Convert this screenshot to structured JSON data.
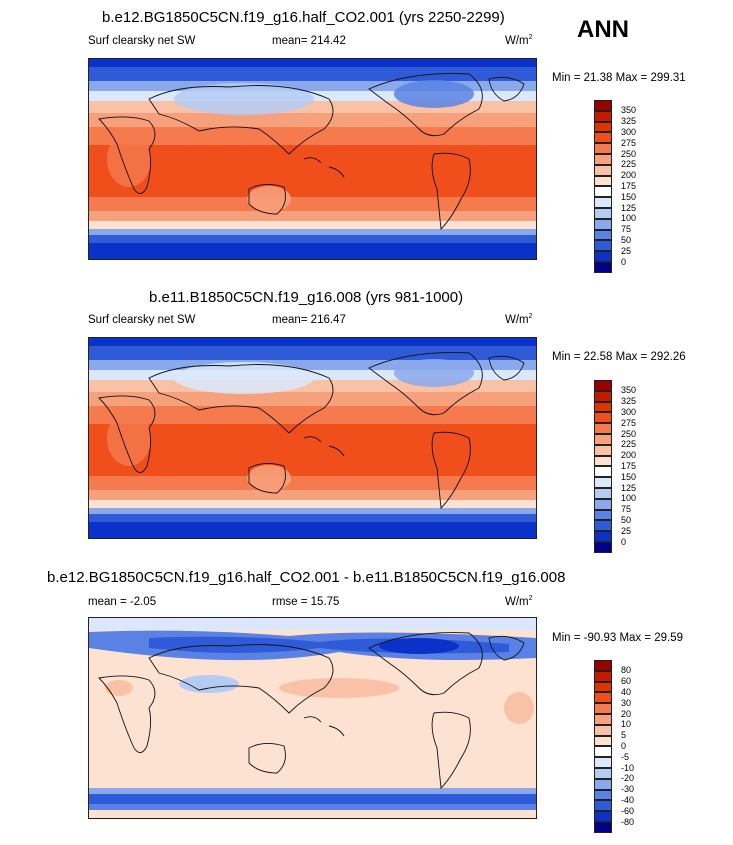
{
  "season": "ANN",
  "panels": [
    {
      "title": "b.e12.BG1850C5CN.f19_g16.half_CO2.001 (yrs 2250-2299)",
      "left_label": "Surf clearsky net SW",
      "center_label": "mean= 214.42",
      "units": "W/m",
      "units_sup": "2",
      "minmax": "Min =  21.38 Max = 299.31",
      "kind": "abs"
    },
    {
      "title": "b.e11.B1850C5CN.f19_g16.008 (yrs 981-1000)",
      "left_label": "Surf clearsky net SW",
      "center_label": "mean= 216.47",
      "units": "W/m",
      "units_sup": "2",
      "minmax": "Min =  22.58 Max = 292.26",
      "kind": "abs"
    },
    {
      "title": "b.e12.BG1850C5CN.f19_g16.half_CO2.001 - b.e11.B1850C5CN.f19_g16.008",
      "left_label": "mean =  -2.05",
      "center_label": "rmse =  15.75",
      "units": "W/m",
      "units_sup": "2",
      "minmax": "Min = -90.93 Max =  29.59",
      "kind": "diff"
    }
  ],
  "colorbar_abs": {
    "labels": [
      "350",
      "325",
      "300",
      "275",
      "250",
      "225",
      "200",
      "175",
      "150",
      "125",
      "100",
      "75",
      "50",
      "25",
      "0"
    ],
    "colors": [
      "#9b0000",
      "#c41a00",
      "#dd3500",
      "#f04e1b",
      "#f57a4d",
      "#f7a07c",
      "#f9c2a6",
      "#fde2d2",
      "#ffffff",
      "#dbe7fb",
      "#b4cbf3",
      "#8aa9ec",
      "#5a82e4",
      "#2f5bd9",
      "#0a32c8",
      "#00008c"
    ]
  },
  "colorbar_diff": {
    "labels": [
      "80",
      "60",
      "40",
      "30",
      "20",
      "10",
      "5",
      "0",
      "-5",
      "-10",
      "-20",
      "-30",
      "-40",
      "-60",
      "-80"
    ],
    "colors": [
      "#9b0000",
      "#c41a00",
      "#dd3500",
      "#f04e1b",
      "#f57a4d",
      "#f7a07c",
      "#f9c2a6",
      "#fde2d2",
      "#ffffff",
      "#dbe7fb",
      "#b4cbf3",
      "#8aa9ec",
      "#5a82e4",
      "#2f5bd9",
      "#0a32c8",
      "#00008c"
    ]
  }
}
